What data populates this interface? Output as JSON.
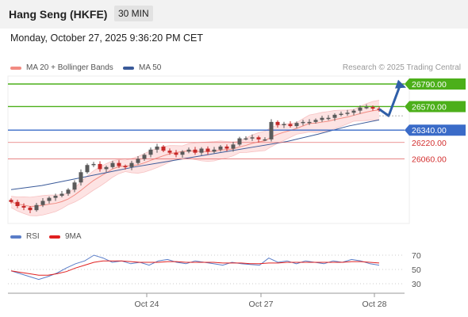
{
  "header": {
    "title": "Hang Seng (HKFE)",
    "timeframe": "30 MIN"
  },
  "datetime": "Monday, October 27, 2025 9:36:20 PM CET",
  "legend": {
    "items": [
      {
        "label": "MA 20 + Bollinger Bands",
        "color": "#f28b82"
      },
      {
        "label": "MA 50",
        "color": "#3a5a99"
      }
    ],
    "credit": "Research © 2025 Trading Central"
  },
  "rsi_legend": {
    "items": [
      {
        "label": "RSI",
        "color": "#5a7dc8"
      },
      {
        "label": "9MA",
        "color": "#e02020"
      }
    ]
  },
  "colors": {
    "resistance": "#4caf1a",
    "pivot": "#3a6bc8",
    "support": "#e57373",
    "band_fill": "#fde3e3",
    "candle_up": "#5a5a5a",
    "candle_down": "#c62828",
    "arrow": "#2f5fa8"
  },
  "chart_data": [
    {
      "type": "candlestick",
      "instrument": "Hang Seng (HKFE)",
      "interval": "30 MIN",
      "x_ticks": [
        "Oct 24",
        "Oct 27",
        "Oct 28"
      ],
      "levels": [
        {
          "label": "26790.00",
          "value": 26790,
          "kind": "resistance"
        },
        {
          "label": "26570.00",
          "value": 26570,
          "kind": "resistance"
        },
        {
          "label": "26340.00",
          "value": 26340,
          "kind": "pivot"
        },
        {
          "label": "26220.00",
          "value": 26220,
          "kind": "support"
        },
        {
          "label": "26060.00",
          "value": 26060,
          "kind": "support"
        }
      ],
      "last_price_approx": 26545,
      "close_series_approx": [
        25640,
        25600,
        25585,
        25560,
        25610,
        25650,
        25680,
        25700,
        25720,
        25760,
        25830,
        25930,
        26000,
        26010,
        25960,
        25980,
        26020,
        25990,
        25980,
        26020,
        26060,
        26100,
        26150,
        26180,
        26140,
        26120,
        26100,
        26130,
        26150,
        26120,
        26160,
        26130,
        26150,
        26180,
        26160,
        26200,
        26260,
        26260,
        26270,
        26250,
        26250,
        26420,
        26390,
        26400,
        26380,
        26410,
        26420,
        26420,
        26440,
        26460,
        26460,
        26490,
        26500,
        26510,
        26530,
        26560,
        26565,
        26550,
        26545
      ],
      "ma50_approx": [
        25760,
        25800,
        25860,
        25920,
        25980,
        26030,
        26080,
        26130,
        26180,
        26230,
        26300,
        26380,
        26440
      ],
      "forecast_path": [
        26545,
        26480,
        26770
      ]
    },
    {
      "type": "line",
      "name": "RSI",
      "y_ticks": [
        70,
        50,
        30
      ],
      "ylim": [
        20,
        80
      ],
      "series": [
        {
          "name": "RSI",
          "values": [
            48,
            44,
            40,
            36,
            40,
            45,
            52,
            58,
            62,
            70,
            66,
            60,
            62,
            58,
            60,
            56,
            62,
            64,
            60,
            58,
            62,
            60,
            58,
            56,
            60,
            58,
            57,
            56,
            66,
            60,
            62,
            58,
            62,
            60,
            58,
            62,
            60,
            64,
            62,
            58,
            56
          ]
        },
        {
          "name": "9MA",
          "values": [
            48,
            46,
            44,
            42,
            42,
            44,
            47,
            52,
            56,
            60,
            62,
            62,
            62,
            61,
            60,
            60,
            60,
            61,
            61,
            60,
            60,
            60,
            60,
            59,
            59,
            59,
            58,
            58,
            59,
            59,
            60,
            60,
            60,
            60,
            60,
            60,
            60,
            61,
            61,
            60,
            59
          ]
        }
      ]
    }
  ]
}
